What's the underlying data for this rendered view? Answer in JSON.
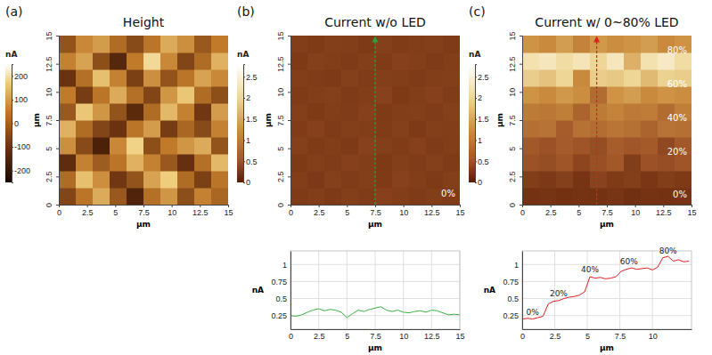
{
  "chart_data": [
    {
      "type": "heatmap",
      "panel": "(a)",
      "title": "Height",
      "x_label": "μm",
      "y_label": "μm",
      "xlim": [
        0,
        15
      ],
      "ylim": [
        0,
        15
      ],
      "xticks": [
        0,
        2.5,
        5,
        7.5,
        10,
        12.5,
        15
      ],
      "yticks": [
        0,
        2.5,
        5,
        7.5,
        10,
        12.5,
        15
      ],
      "x": [
        0.75,
        2.25,
        3.75,
        5.25,
        6.75,
        8.25,
        9.75,
        11.25,
        12.75,
        14.25
      ],
      "y": [
        0.75,
        2.25,
        3.75,
        5.25,
        6.75,
        8.25,
        9.75,
        11.25,
        12.75,
        14.25
      ],
      "z": [
        [
          -60,
          40,
          120,
          -20,
          -150,
          30,
          90,
          -40,
          60,
          10
        ],
        [
          20,
          150,
          80,
          -90,
          -30,
          110,
          170,
          20,
          -70,
          40
        ],
        [
          -120,
          60,
          -10,
          40,
          130,
          60,
          -20,
          -110,
          30,
          140
        ],
        [
          80,
          -50,
          -160,
          70,
          180,
          -40,
          50,
          90,
          120,
          -30
        ],
        [
          130,
          20,
          -60,
          -100,
          40,
          100,
          -80,
          10,
          -50,
          60
        ],
        [
          -20,
          160,
          90,
          -30,
          -130,
          20,
          140,
          60,
          -90,
          100
        ],
        [
          50,
          -80,
          40,
          120,
          30,
          -60,
          90,
          160,
          20,
          -40
        ],
        [
          -100,
          30,
          150,
          60,
          -70,
          80,
          -30,
          40,
          110,
          70
        ],
        [
          60,
          110,
          -40,
          -140,
          50,
          190,
          70,
          -60,
          20,
          130
        ],
        [
          -30,
          70,
          100,
          20,
          -50,
          40,
          120,
          80,
          -20,
          50
        ]
      ],
      "colorbar": {
        "label": "nA",
        "range": [
          -250,
          250
        ],
        "ticks": [
          200,
          100,
          0,
          -100,
          -200
        ]
      }
    },
    {
      "type": "heatmap",
      "panel": "(b)",
      "title": "Current w/o LED",
      "x_label": "μm",
      "y_label": "μm",
      "xlim": [
        0,
        15
      ],
      "ylim": [
        0,
        15
      ],
      "xticks": [
        0,
        2.5,
        5,
        7.5,
        10,
        12.5,
        15
      ],
      "yticks": [
        0,
        2.5,
        5,
        7.5,
        10,
        12.5,
        15
      ],
      "x": [
        0.75,
        2.25,
        3.75,
        5.25,
        6.75,
        8.25,
        9.75,
        11.25,
        12.75,
        14.25
      ],
      "y": [
        0.75,
        2.25,
        3.75,
        5.25,
        6.75,
        8.25,
        9.75,
        11.25,
        12.75,
        14.25
      ],
      "z": [
        [
          0.28,
          0.3,
          0.27,
          0.31,
          0.29,
          0.33,
          0.3,
          0.28,
          0.3,
          0.29
        ],
        [
          0.3,
          0.26,
          0.32,
          0.29,
          0.31,
          0.28,
          0.34,
          0.3,
          0.27,
          0.31
        ],
        [
          0.27,
          0.31,
          0.29,
          0.33,
          0.3,
          0.27,
          0.31,
          0.29,
          0.32,
          0.28
        ],
        [
          0.32,
          0.28,
          0.3,
          0.27,
          0.34,
          0.31,
          0.29,
          0.33,
          0.28,
          0.3
        ],
        [
          0.29,
          0.33,
          0.28,
          0.31,
          0.3,
          0.29,
          0.32,
          0.27,
          0.31,
          0.3
        ],
        [
          0.31,
          0.27,
          0.3,
          0.29,
          0.33,
          0.28,
          0.3,
          0.31,
          0.29,
          0.32
        ],
        [
          0.28,
          0.3,
          0.32,
          0.28,
          0.3,
          0.34,
          0.27,
          0.3,
          0.33,
          0.29
        ],
        [
          0.3,
          0.29,
          0.27,
          0.32,
          0.29,
          0.31,
          0.3,
          0.28,
          0.3,
          0.31
        ],
        [
          0.27,
          0.32,
          0.3,
          0.28,
          0.31,
          0.29,
          0.33,
          0.31,
          0.28,
          0.3
        ],
        [
          0.3,
          0.28,
          0.31,
          0.3,
          0.27,
          0.32,
          0.29,
          0.3,
          0.31,
          0.28
        ]
      ],
      "colorbar": {
        "label": "nA",
        "range": [
          0,
          2.8
        ],
        "ticks": [
          2.5,
          2,
          1.5,
          1,
          0.5,
          0
        ]
      },
      "cut": {
        "x": 7.5,
        "color": "#2e9e3e"
      },
      "annotations": [
        {
          "text": "0%",
          "x": 14.6,
          "y": 0.7
        }
      ]
    },
    {
      "type": "heatmap",
      "panel": "(c)",
      "title": "Current w/ 0~80% LED",
      "x_label": "μm",
      "y_label": "μm",
      "xlim": [
        0,
        15
      ],
      "ylim": [
        0,
        15
      ],
      "xticks": [
        0,
        2.5,
        5,
        7.5,
        10,
        12.5,
        15
      ],
      "yticks": [
        0,
        2.5,
        5,
        7.5,
        10,
        12.5,
        15
      ],
      "x": [
        0.75,
        2.25,
        3.75,
        5.25,
        6.75,
        8.25,
        9.75,
        11.25,
        12.75,
        14.25
      ],
      "y": [
        0.75,
        2.25,
        3.75,
        5.25,
        6.75,
        8.25,
        9.75,
        11.25,
        12.75,
        14.25
      ],
      "z": [
        [
          0.2,
          0.22,
          0.19,
          0.21,
          0.2,
          0.23,
          0.18,
          0.21,
          0.2,
          0.22
        ],
        [
          0.3,
          0.26,
          0.32,
          0.22,
          0.35,
          0.28,
          0.31,
          0.24,
          0.3,
          0.27
        ],
        [
          0.5,
          0.45,
          0.52,
          0.38,
          0.48,
          0.55,
          0.3,
          0.5,
          0.46,
          0.52
        ],
        [
          0.55,
          0.5,
          0.58,
          0.52,
          0.45,
          0.6,
          0.53,
          0.57,
          0.4,
          0.55
        ],
        [
          0.85,
          0.9,
          0.6,
          0.88,
          0.82,
          0.92,
          0.86,
          0.7,
          0.9,
          0.84
        ],
        [
          1.0,
          0.95,
          1.05,
          0.7,
          1.0,
          1.1,
          0.98,
          1.02,
          0.8,
          1.05
        ],
        [
          1.3,
          1.2,
          1.35,
          1.25,
          0.8,
          1.3,
          1.4,
          1.2,
          1.3,
          1.25
        ],
        [
          1.9,
          1.8,
          2.0,
          1.2,
          1.9,
          1.85,
          2.0,
          1.7,
          1.95,
          1.9
        ],
        [
          2.2,
          2.3,
          2.1,
          2.25,
          2.0,
          2.3,
          1.6,
          2.2,
          2.35,
          2.1
        ],
        [
          1.3,
          1.2,
          1.4,
          1.1,
          1.35,
          1.25,
          1.3,
          1.4,
          1.2,
          1.3
        ]
      ],
      "colorbar": {
        "label": "nA",
        "range": [
          0,
          2.8
        ],
        "ticks": [
          2.5,
          2,
          1.5,
          1,
          0.5,
          0
        ]
      },
      "cut": {
        "x": 6.6,
        "color": "#e02020"
      },
      "annotations": [
        {
          "text": "80%",
          "x": 14.6,
          "y": 13.4
        },
        {
          "text": "60%",
          "x": 14.6,
          "y": 10.4
        },
        {
          "text": "40%",
          "x": 14.6,
          "y": 7.4
        },
        {
          "text": "20%",
          "x": 14.6,
          "y": 4.4
        },
        {
          "text": "0%",
          "x": 14.6,
          "y": 0.6
        }
      ]
    },
    {
      "type": "line",
      "x_label": "μm",
      "y_label": "nA",
      "color": "#3cb043",
      "grid": true,
      "xlim": [
        0,
        15
      ],
      "ylim": [
        0.05,
        1.2
      ],
      "xticks": [
        0,
        2.5,
        5,
        7.5,
        10,
        12.5,
        15
      ],
      "yticks": [
        0.25,
        0.5,
        0.75,
        1
      ],
      "x": [
        0,
        0.5,
        1,
        1.5,
        2,
        2.5,
        3,
        3.5,
        4,
        4.5,
        5,
        5.5,
        6,
        6.5,
        7,
        7.5,
        8,
        8.5,
        9,
        9.5,
        10,
        10.5,
        11,
        11.5,
        12,
        12.5,
        13,
        13.5,
        14,
        14.5,
        15
      ],
      "values": [
        0.25,
        0.24,
        0.26,
        0.3,
        0.33,
        0.35,
        0.32,
        0.34,
        0.33,
        0.3,
        0.22,
        0.28,
        0.33,
        0.31,
        0.34,
        0.36,
        0.38,
        0.33,
        0.31,
        0.33,
        0.3,
        0.29,
        0.31,
        0.32,
        0.3,
        0.33,
        0.32,
        0.29,
        0.26,
        0.27,
        0.26
      ]
    },
    {
      "type": "line",
      "x_label": "μm",
      "y_label": "nA",
      "color": "#e02020",
      "grid": true,
      "xlim": [
        0,
        13
      ],
      "ylim": [
        0.05,
        1.2
      ],
      "xticks": [
        0,
        2.5,
        5,
        7.5,
        10
      ],
      "yticks": [
        0.25,
        0.5,
        0.75,
        1
      ],
      "x": [
        0,
        0.4,
        0.8,
        1.2,
        1.6,
        2.0,
        2.4,
        2.8,
        3.2,
        3.6,
        4.0,
        4.4,
        4.8,
        5.2,
        5.6,
        6.0,
        6.4,
        6.8,
        7.2,
        7.6,
        8.0,
        8.4,
        8.8,
        9.2,
        9.6,
        10.0,
        10.4,
        10.8,
        11.2,
        11.6,
        12.0,
        12.4,
        12.8
      ],
      "values": [
        0.2,
        0.21,
        0.2,
        0.22,
        0.24,
        0.42,
        0.46,
        0.47,
        0.5,
        0.52,
        0.53,
        0.55,
        0.6,
        0.82,
        0.8,
        0.81,
        0.79,
        0.8,
        0.82,
        0.9,
        0.93,
        0.95,
        0.93,
        0.94,
        0.95,
        0.92,
        0.96,
        1.1,
        1.12,
        1.05,
        1.07,
        1.04,
        1.05
      ],
      "annotations": [
        {
          "text": "0%",
          "x": 0.8,
          "y": 0.26
        },
        {
          "text": "20%",
          "x": 2.8,
          "y": 0.53
        },
        {
          "text": "40%",
          "x": 5.2,
          "y": 0.89
        },
        {
          "text": "60%",
          "x": 8.2,
          "y": 1.0
        },
        {
          "text": "80%",
          "x": 11.2,
          "y": 1.16
        }
      ]
    }
  ]
}
